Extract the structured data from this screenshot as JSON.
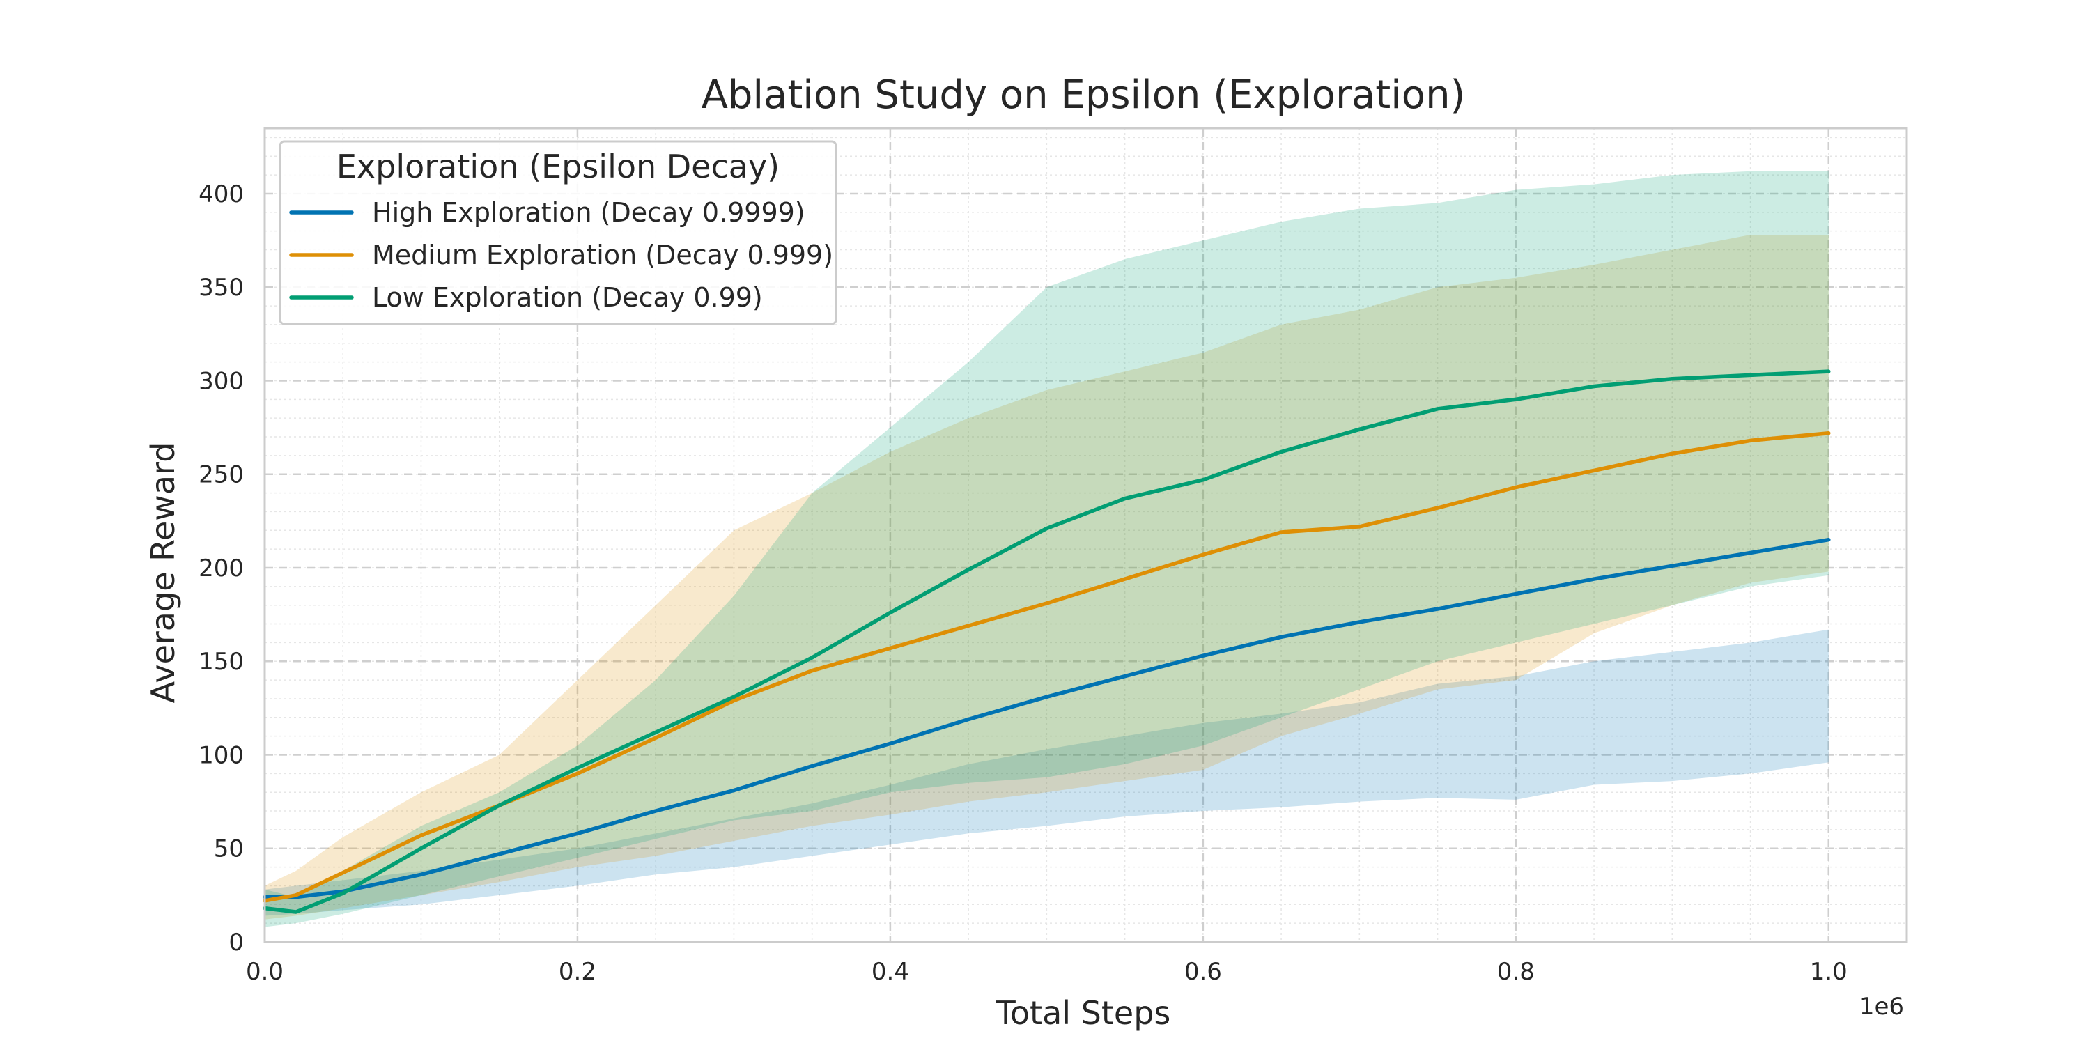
{
  "chart_data": {
    "type": "line",
    "title": "Ablation Study on Epsilon (Exploration)",
    "xlabel": "Total Steps",
    "ylabel": "Average Reward",
    "x_scale_label": "1e6",
    "xlim": [
      0.0,
      1.05
    ],
    "ylim": [
      0,
      435
    ],
    "xticks": [
      "0.0",
      "0.2",
      "0.4",
      "0.6",
      "0.8",
      "1.0"
    ],
    "yticks": [
      "0",
      "50",
      "100",
      "150",
      "200",
      "250",
      "300",
      "350",
      "400"
    ],
    "grid": true,
    "legend": {
      "title": "Exploration (Epsilon Decay)",
      "placement": "upper-left"
    },
    "x": [
      0.0,
      0.02,
      0.05,
      0.1,
      0.15,
      0.2,
      0.25,
      0.3,
      0.35,
      0.4,
      0.45,
      0.5,
      0.55,
      0.6,
      0.65,
      0.7,
      0.75,
      0.8,
      0.85,
      0.9,
      0.95,
      1.0
    ],
    "series": [
      {
        "name": "High Exploration (Decay 0.9999)",
        "color": "#0173b2",
        "values": [
          24,
          24,
          27,
          36,
          47,
          58,
          70,
          81,
          94,
          106,
          119,
          131,
          142,
          153,
          163,
          171,
          178,
          186,
          194,
          201,
          208,
          215
        ],
        "lower": [
          14,
          15,
          17,
          20,
          25,
          30,
          36,
          40,
          46,
          52,
          58,
          62,
          67,
          70,
          72,
          75,
          77,
          76,
          84,
          86,
          90,
          96
        ],
        "upper": [
          28,
          30,
          33,
          38,
          44,
          50,
          58,
          66,
          74,
          84,
          95,
          103,
          110,
          117,
          122,
          128,
          138,
          142,
          150,
          155,
          160,
          167
        ]
      },
      {
        "name": "Medium Exploration (Decay 0.999)",
        "color": "#de8f05",
        "values": [
          22,
          25,
          37,
          57,
          73,
          90,
          109,
          129,
          145,
          157,
          169,
          181,
          194,
          207,
          219,
          222,
          232,
          243,
          252,
          261,
          268,
          272
        ],
        "lower": [
          12,
          14,
          18,
          25,
          32,
          40,
          46,
          54,
          62,
          68,
          75,
          80,
          86,
          92,
          110,
          122,
          135,
          140,
          165,
          180,
          192,
          198
        ],
        "upper": [
          30,
          38,
          56,
          80,
          100,
          140,
          180,
          220,
          240,
          262,
          280,
          295,
          305,
          315,
          330,
          338,
          350,
          355,
          362,
          370,
          378,
          378
        ]
      },
      {
        "name": "Low Exploration (Decay 0.99)",
        "color": "#029e73",
        "values": [
          18,
          16,
          26,
          50,
          73,
          93,
          112,
          131,
          152,
          176,
          199,
          221,
          237,
          247,
          262,
          274,
          285,
          290,
          297,
          301,
          303,
          305
        ],
        "lower": [
          8,
          10,
          15,
          25,
          35,
          45,
          55,
          65,
          70,
          80,
          85,
          88,
          95,
          105,
          120,
          135,
          150,
          160,
          170,
          180,
          190,
          196
        ],
        "upper": [
          28,
          24,
          38,
          62,
          80,
          105,
          140,
          185,
          240,
          275,
          310,
          350,
          365,
          375,
          385,
          392,
          395,
          402,
          405,
          410,
          412,
          412
        ]
      }
    ]
  }
}
